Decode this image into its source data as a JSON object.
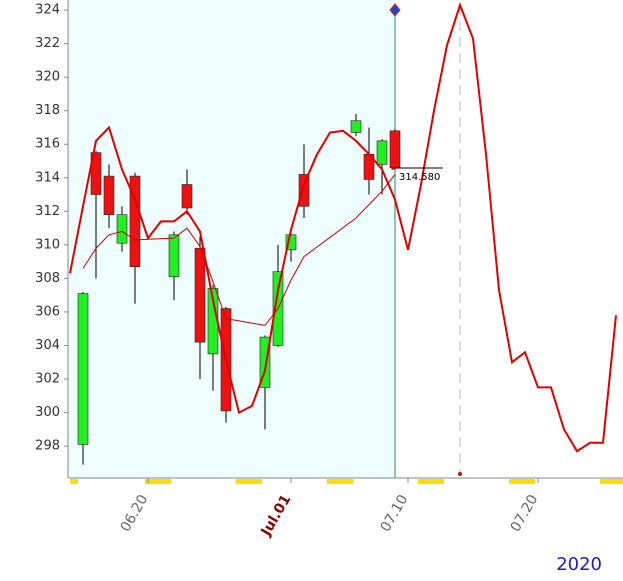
{
  "chart_data": {
    "type": "candlestick",
    "x": [
      "2020-06-15",
      "2020-06-16",
      "2020-06-17",
      "2020-06-18",
      "2020-06-19",
      "2020-06-22",
      "2020-06-23",
      "2020-06-24",
      "2020-06-25",
      "2020-06-26",
      "2020-06-29",
      "2020-06-30",
      "2020-07-01",
      "2020-07-02",
      "2020-07-06",
      "2020-07-07",
      "2020-07-08",
      "2020-07-09"
    ],
    "open": [
      298.1,
      315.5,
      314.1,
      310.1,
      314.1,
      308.1,
      313.6,
      309.8,
      303.5,
      306.2,
      301.5,
      304.0,
      309.7,
      314.2,
      316.7,
      315.4,
      314.8,
      316.8
    ],
    "high": [
      307.2,
      315.6,
      314.8,
      312.3,
      314.3,
      310.8,
      314.5,
      310.5,
      307.6,
      306.3,
      304.6,
      310.0,
      310.8,
      316.0,
      317.8,
      317.0,
      316.3,
      316.9
    ],
    "low": [
      296.9,
      308.0,
      311.0,
      309.6,
      306.5,
      306.7,
      311.8,
      302.0,
      301.3,
      299.4,
      299.0,
      303.9,
      309.0,
      311.6,
      316.5,
      313.0,
      313.0,
      314.5
    ],
    "close": [
      307.1,
      313.0,
      311.8,
      311.8,
      308.7,
      310.6,
      312.2,
      304.2,
      307.4,
      300.1,
      304.5,
      308.4,
      310.6,
      312.3,
      317.4,
      313.9,
      316.2,
      314.6
    ],
    "up_color": "#22ee22",
    "down_color": "#ee1111",
    "lines": [
      {
        "x": [
          "2020-06-14",
          "2020-06-15",
          "2020-06-16",
          "2020-06-17",
          "2020-06-18",
          "2020-06-19",
          "2020-06-20",
          "2020-06-21",
          "2020-06-22",
          "2020-06-23",
          "2020-06-24",
          "2020-06-25",
          "2020-06-26",
          "2020-06-27",
          "2020-06-28",
          "2020-06-29",
          "2020-06-30",
          "2020-07-01",
          "2020-07-02",
          "2020-07-03",
          "2020-07-04",
          "2020-07-05",
          "2020-07-06",
          "2020-07-07",
          "2020-07-08",
          "2020-07-09",
          "2020-07-10",
          "2020-07-11",
          "2020-07-12",
          "2020-07-13",
          "2020-07-14",
          "2020-07-15",
          "2020-07-16",
          "2020-07-17",
          "2020-07-18",
          "2020-07-19",
          "2020-07-20",
          "2020-07-21",
          "2020-07-22",
          "2020-07-23",
          "2020-07-24",
          "2020-07-25",
          "2020-07-26"
        ],
        "values": [
          308.3,
          312.3,
          316.2,
          317.0,
          314.5,
          312.7,
          310.4,
          311.4,
          311.4,
          312.0,
          310.8,
          306.7,
          303.1,
          300.0,
          300.4,
          302.5,
          307.3,
          310.9,
          313.6,
          315.4,
          316.7,
          316.8,
          316.2,
          315.4,
          314.5,
          312.7,
          309.7,
          313.6,
          318.0,
          321.9,
          324.3,
          322.3,
          315.4,
          307.3,
          303.0,
          303.6,
          301.5,
          301.5,
          299.0,
          297.7,
          298.2,
          298.2,
          305.8
        ],
        "color": "#e00000",
        "width": 2
      },
      {
        "x": [
          "2020-06-15",
          "2020-06-16",
          "2020-06-17",
          "2020-06-18",
          "2020-06-19",
          "2020-06-22",
          "2020-06-23",
          "2020-06-24",
          "2020-06-25",
          "2020-06-26",
          "2020-06-29",
          "2020-06-30",
          "2020-07-01",
          "2020-07-02",
          "2020-07-06",
          "2020-07-07",
          "2020-07-08",
          "2020-07-09"
        ],
        "values": [
          308.6,
          309.8,
          310.6,
          310.8,
          310.3,
          310.4,
          311.0,
          309.9,
          307.8,
          305.6,
          305.2,
          306.2,
          307.9,
          309.3,
          311.6,
          312.4,
          313.2,
          314.2
        ],
        "color": "#cc0000",
        "width": 1
      }
    ],
    "last_price": {
      "value": 314.58,
      "label": "314.580"
    },
    "marker_date": "2020-07-14",
    "xlim": [
      "2020-06-14",
      "2020-07-26"
    ],
    "xticks": [
      {
        "value": "2020-06-20",
        "label": "06.20"
      },
      {
        "value": "2020-07-01",
        "label": "Jul.01",
        "color": "#8b0000"
      },
      {
        "value": "2020-07-10",
        "label": "07.10"
      },
      {
        "value": "2020-07-20",
        "label": "07.20"
      }
    ],
    "ylim": [
      296.1,
      324.6
    ],
    "yticks": [
      298,
      300,
      302,
      304,
      306,
      308,
      310,
      312,
      314,
      316,
      318,
      320,
      322,
      324
    ],
    "year": "2020"
  }
}
